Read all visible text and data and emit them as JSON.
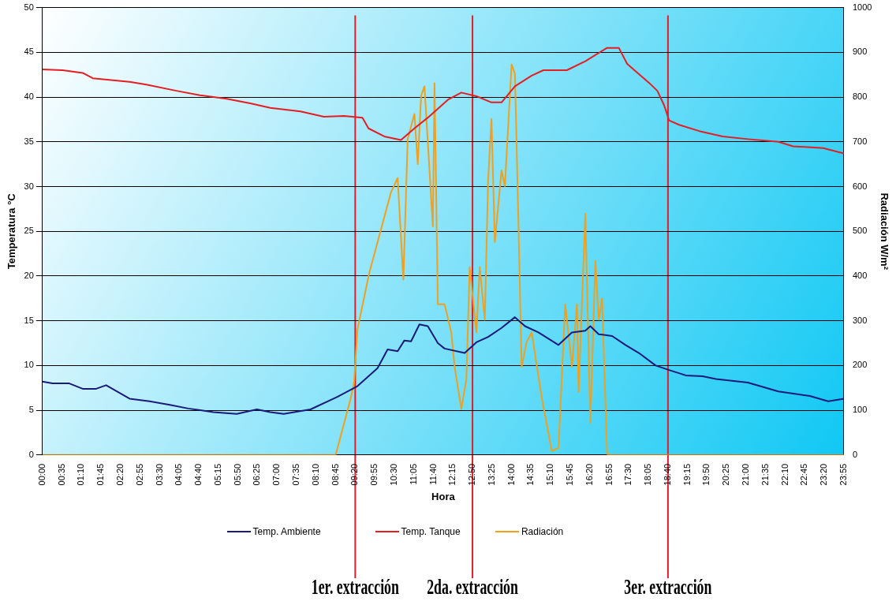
{
  "chart_data": {
    "type": "line",
    "xlabel": "Hora",
    "ylabel": "Temperatura °C",
    "y2label": "Radiación W/m²",
    "xlim": [
      0,
      23.9167
    ],
    "ylim": [
      0,
      50
    ],
    "yticks": [
      0,
      5,
      10,
      15,
      20,
      25,
      30,
      35,
      40,
      45,
      50
    ],
    "y2lim": [
      0,
      1000
    ],
    "y2ticks": [
      0,
      100,
      200,
      300,
      400,
      500,
      600,
      700,
      800,
      900,
      1000
    ],
    "xticks": [
      {
        "value": 0,
        "label": "00:00"
      },
      {
        "value": 0.5833,
        "label": "00:35"
      },
      {
        "value": 1.1667,
        "label": "01:10"
      },
      {
        "value": 1.75,
        "label": "01:45"
      },
      {
        "value": 2.3333,
        "label": "02:20"
      },
      {
        "value": 2.9167,
        "label": "02:55"
      },
      {
        "value": 3.5,
        "label": "03:30"
      },
      {
        "value": 4.0833,
        "label": "04:05"
      },
      {
        "value": 4.6667,
        "label": "04:40"
      },
      {
        "value": 5.25,
        "label": "05:15"
      },
      {
        "value": 5.8333,
        "label": "05:50"
      },
      {
        "value": 6.4167,
        "label": "06:25"
      },
      {
        "value": 7,
        "label": "07:00"
      },
      {
        "value": 7.5833,
        "label": "07:35"
      },
      {
        "value": 8.1667,
        "label": "08:10"
      },
      {
        "value": 8.75,
        "label": "08:45"
      },
      {
        "value": 9.3333,
        "label": "09:20"
      },
      {
        "value": 9.9167,
        "label": "09:55"
      },
      {
        "value": 10.5,
        "label": "10:30"
      },
      {
        "value": 11.0833,
        "label": "11:05"
      },
      {
        "value": 11.6667,
        "label": "11:40"
      },
      {
        "value": 12.25,
        "label": "12:15"
      },
      {
        "value": 12.8333,
        "label": "12:50"
      },
      {
        "value": 13.4167,
        "label": "13:25"
      },
      {
        "value": 14,
        "label": "14:00"
      },
      {
        "value": 14.5833,
        "label": "14:35"
      },
      {
        "value": 15.1667,
        "label": "15:10"
      },
      {
        "value": 15.75,
        "label": "15:45"
      },
      {
        "value": 16.3333,
        "label": "16:20"
      },
      {
        "value": 16.9167,
        "label": "16:55"
      },
      {
        "value": 17.5,
        "label": "17:30"
      },
      {
        "value": 18.0833,
        "label": "18:05"
      },
      {
        "value": 18.6667,
        "label": "18:40"
      },
      {
        "value": 19.25,
        "label": "19:15"
      },
      {
        "value": 19.8333,
        "label": "19:50"
      },
      {
        "value": 20.4167,
        "label": "20:25"
      },
      {
        "value": 21,
        "label": "21:00"
      },
      {
        "value": 21.5833,
        "label": "21:35"
      },
      {
        "value": 22.1667,
        "label": "22:10"
      },
      {
        "value": 22.75,
        "label": "22:45"
      },
      {
        "value": 23.3333,
        "label": "23:20"
      },
      {
        "value": 23.9167,
        "label": "23:55"
      }
    ],
    "grid": "y",
    "legend": "bottom",
    "marker": "none",
    "series": [
      {
        "name": "Temp. Ambiente",
        "color": "#1a1a7a",
        "x": [
          0,
          0.3,
          0.8,
          1.2,
          1.6,
          1.9,
          2.6,
          3.2,
          3.8,
          4.35,
          5.1,
          5.8,
          6.4,
          6.8,
          7.2,
          8.0,
          8.8,
          9.4,
          10.0,
          10.3,
          10.6,
          10.8,
          11.0,
          11.25,
          11.5,
          11.8,
          12.0,
          12.6,
          12.95,
          13.3,
          13.7,
          14.1,
          14.4,
          14.8,
          15.4,
          15.8,
          16.2,
          16.35,
          16.6,
          17.0,
          17.4,
          17.8,
          18.3,
          18.7,
          19.2,
          19.7,
          20.1,
          21.05,
          21.96,
          22.9,
          23.45,
          23.9167
        ],
        "values": [
          8.2,
          8.0,
          8.0,
          7.4,
          7.4,
          7.8,
          6.3,
          6.0,
          5.6,
          5.2,
          4.8,
          4.6,
          5.1,
          4.8,
          4.6,
          5.1,
          6.5,
          7.7,
          9.7,
          11.8,
          11.6,
          12.8,
          12.7,
          14.6,
          14.4,
          12.5,
          11.9,
          11.4,
          12.6,
          13.2,
          14.2,
          15.4,
          14.4,
          13.7,
          12.3,
          13.7,
          13.9,
          14.4,
          13.5,
          13.3,
          12.3,
          11.4,
          10.0,
          9.5,
          8.9,
          8.8,
          8.5,
          8.1,
          7.1,
          6.6,
          6.0,
          6.3
        ]
      },
      {
        "name": "Temp. Tanque",
        "color": "#e31e24",
        "x": [
          0,
          0.6,
          1.2,
          1.5,
          2.6,
          3.1,
          4.0,
          4.7,
          5.5,
          6.2,
          6.8,
          7.7,
          8.4,
          9.0,
          9.55,
          9.73,
          10.2,
          10.7,
          11.1,
          11.5,
          12.1,
          12.5,
          12.95,
          13.4,
          13.7,
          14.1,
          14.6,
          14.95,
          15.65,
          16.2,
          16.85,
          17.2,
          17.45,
          18.1,
          18.35,
          18.55,
          18.7,
          19.0,
          19.6,
          20.3,
          21.05,
          21.96,
          22.4,
          23.3,
          23.9167
        ],
        "values": [
          43.1,
          43.0,
          42.7,
          42.1,
          41.7,
          41.4,
          40.7,
          40.2,
          39.8,
          39.3,
          38.8,
          38.4,
          37.8,
          37.9,
          37.7,
          36.5,
          35.6,
          35.2,
          36.5,
          37.7,
          39.7,
          40.5,
          40.1,
          39.4,
          39.4,
          41.2,
          42.4,
          43.0,
          43.0,
          44.0,
          45.5,
          45.5,
          43.7,
          41.6,
          40.7,
          39.1,
          37.4,
          36.9,
          36.2,
          35.6,
          35.3,
          35.0,
          34.5,
          34.3,
          33.7
        ]
      },
      {
        "name": "Radiación",
        "color": "#f0a020",
        "axis": "y2",
        "x": [
          0,
          8.75,
          9.2,
          9.3,
          9.4,
          9.75,
          10.4,
          10.6,
          10.77,
          10.9,
          11.1,
          11.2,
          11.3,
          11.4,
          11.5,
          11.65,
          11.7,
          11.8,
          12.0,
          12.2,
          12.3,
          12.5,
          12.65,
          12.75,
          12.95,
          13.05,
          13.2,
          13.3,
          13.4,
          13.5,
          13.7,
          13.8,
          14.0,
          14.1,
          14.2,
          14.3,
          14.45,
          14.6,
          14.9,
          15.2,
          15.4,
          15.6,
          15.8,
          15.95,
          16.0,
          16.2,
          16.35,
          16.5,
          16.6,
          16.7,
          16.85,
          17.0,
          23.9167
        ],
        "values": [
          0,
          0,
          127,
          162,
          281,
          406,
          587,
          619,
          392,
          706,
          762,
          650,
          803,
          824,
          699,
          511,
          831,
          337,
          337,
          274,
          197,
          103,
          169,
          420,
          274,
          420,
          302,
          615,
          751,
          476,
          636,
          601,
          873,
          852,
          532,
          197,
          253,
          274,
          128,
          9,
          16,
          337,
          197,
          337,
          141,
          539,
          72,
          434,
          302,
          350,
          2,
          0,
          0
        ]
      }
    ],
    "ref_lines": [
      {
        "axis": "x",
        "value": 9.3333,
        "label": "1er. extracción",
        "color": "#e31e24"
      },
      {
        "axis": "x",
        "value": 12.8333,
        "label": "2da. extracción",
        "color": "#e31e24"
      },
      {
        "axis": "x",
        "value": 18.6667,
        "label": "3er. extracción",
        "color": "#e31e24"
      }
    ]
  }
}
